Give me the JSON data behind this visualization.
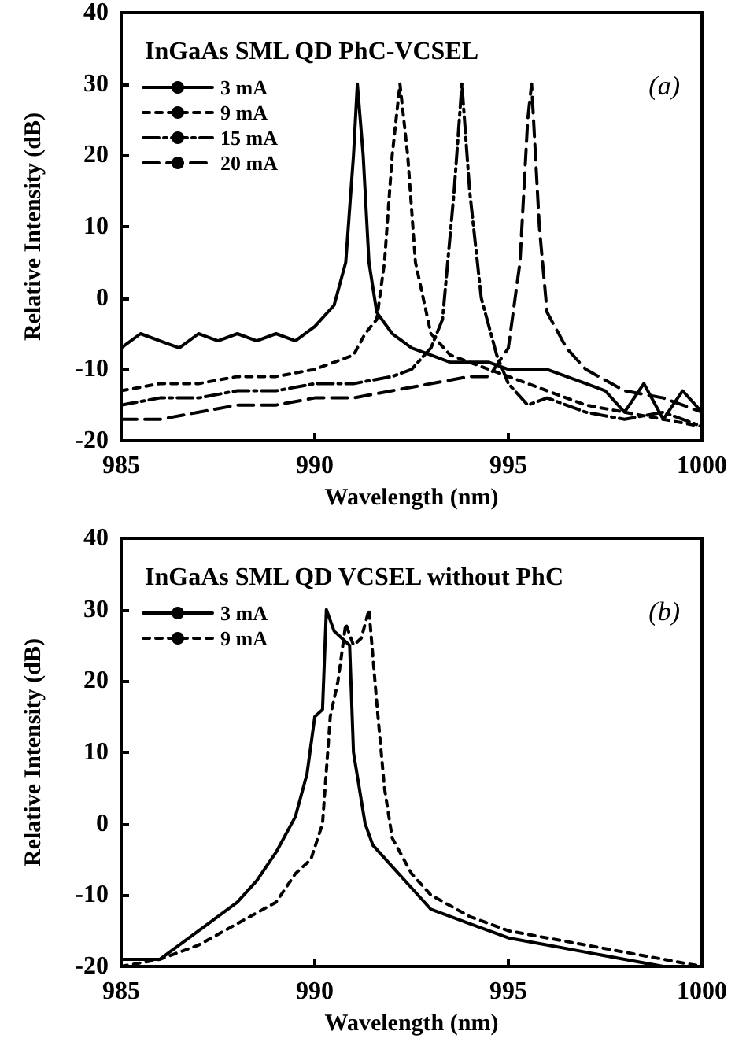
{
  "chart_data": [
    {
      "type": "line",
      "title": "InGaAs SML QD PhC-VCSEL",
      "annotations": [
        "(a)"
      ],
      "xlabel": "Wavelength (nm)",
      "ylabel": "Relative Intensity (dB)",
      "xlim": [
        985,
        1000
      ],
      "xticks": [
        985,
        990,
        995,
        1000
      ],
      "ylim": [
        -20,
        40
      ],
      "yticks": [
        -20,
        -10,
        0,
        10,
        20,
        30,
        40
      ],
      "legend": "top left",
      "marker": "none",
      "series": [
        {
          "name": "3 mA",
          "color": "#000000",
          "line_style": "solid",
          "x": [
            985,
            985.5,
            986,
            986.5,
            987,
            987.5,
            988,
            988.5,
            989,
            989.5,
            990,
            990.5,
            990.8,
            991.0,
            991.1,
            991.25,
            991.4,
            991.6,
            992,
            992.5,
            993,
            993.5,
            994,
            994.5,
            995,
            995.5,
            996,
            996.5,
            997,
            997.5,
            998,
            998.5,
            999,
            999.5,
            1000
          ],
          "values": [
            -7,
            -5,
            -6,
            -7,
            -5,
            -6,
            -5,
            -6,
            -5,
            -6,
            -4,
            -1,
            5,
            20,
            30,
            20,
            5,
            -2,
            -5,
            -7,
            -8,
            -9,
            -9,
            -9,
            -10,
            -10,
            -10,
            -11,
            -12,
            -13,
            -16,
            -12,
            -17,
            -13,
            -16
          ]
        },
        {
          "name": "9 mA",
          "color": "#000000",
          "line_style": "dotted",
          "x": [
            985,
            986,
            987,
            988,
            989,
            990,
            990.5,
            991,
            991.3,
            991.6,
            991.8,
            992.0,
            992.2,
            992.4,
            992.6,
            993,
            993.5,
            994,
            995,
            996,
            997,
            998,
            999,
            1000
          ],
          "values": [
            -13,
            -12,
            -12,
            -11,
            -11,
            -10,
            -9,
            -8,
            -5,
            -3,
            5,
            20,
            30,
            20,
            5,
            -5,
            -8,
            -9,
            -11,
            -13,
            -15,
            -16,
            -17,
            -18
          ]
        },
        {
          "name": "15 mA",
          "color": "#000000",
          "line_style": "dashdot",
          "x": [
            985,
            986,
            987,
            988,
            989,
            990,
            991,
            992,
            992.5,
            993,
            993.3,
            993.6,
            993.8,
            994.0,
            994.3,
            994.7,
            995,
            995.5,
            996,
            997,
            998,
            999,
            1000
          ],
          "values": [
            -15,
            -14,
            -14,
            -13,
            -13,
            -12,
            -12,
            -11,
            -10,
            -7,
            -3,
            15,
            30,
            15,
            0,
            -8,
            -12,
            -15,
            -14,
            -16,
            -17,
            -16,
            -18
          ]
        },
        {
          "name": "20 mA",
          "color": "#000000",
          "line_style": "dashed",
          "x": [
            985,
            986,
            987,
            988,
            989,
            990,
            991,
            992,
            993,
            994,
            994.5,
            995,
            995.3,
            995.5,
            995.6,
            995.8,
            996,
            996.5,
            997,
            998,
            999,
            1000
          ],
          "values": [
            -17,
            -17,
            -16,
            -15,
            -15,
            -14,
            -14,
            -13,
            -12,
            -11,
            -11,
            -7,
            5,
            25,
            30,
            10,
            -2,
            -7,
            -10,
            -13,
            -14,
            -16
          ]
        }
      ]
    },
    {
      "type": "line",
      "title": "InGaAs SML QD VCSEL without PhC",
      "annotations": [
        "(b)"
      ],
      "xlabel": "Wavelength (nm)",
      "ylabel": "Relative Intensity (dB)",
      "xlim": [
        985,
        1000
      ],
      "xticks": [
        985,
        990,
        995,
        1000
      ],
      "ylim": [
        -20,
        40
      ],
      "yticks": [
        -20,
        -10,
        0,
        10,
        20,
        30,
        40
      ],
      "legend": "top left",
      "marker": "none",
      "series": [
        {
          "name": "3 mA",
          "color": "#000000",
          "line_style": "solid",
          "x": [
            985,
            986,
            987,
            988,
            988.5,
            989,
            989.5,
            989.8,
            990,
            990.2,
            990.3,
            990.5,
            990.7,
            990.9,
            991,
            991.3,
            991.5,
            992,
            992.5,
            993,
            994,
            995,
            996,
            997,
            998,
            999,
            1000
          ],
          "values": [
            -19,
            -19,
            -15,
            -11,
            -8,
            -4,
            1,
            7,
            15,
            16,
            30,
            27,
            26,
            25,
            10,
            0,
            -3,
            -6,
            -9,
            -12,
            -14,
            -16,
            -17,
            -18,
            -19,
            -20,
            -20
          ]
        },
        {
          "name": "9 mA",
          "color": "#000000",
          "line_style": "dotted",
          "x": [
            985,
            986,
            987,
            988,
            989,
            989.5,
            989.9,
            990.2,
            990.4,
            990.6,
            990.8,
            991,
            991.2,
            991.4,
            991.6,
            991.8,
            992,
            992.5,
            993,
            994,
            995,
            996,
            997,
            998,
            999,
            1000
          ],
          "values": [
            -20,
            -19,
            -17,
            -14,
            -11,
            -7,
            -5,
            0,
            15,
            20,
            28,
            25,
            26,
            30,
            17,
            5,
            -2,
            -7,
            -10,
            -13,
            -15,
            -16,
            -17,
            -18,
            -19,
            -20
          ]
        }
      ]
    }
  ]
}
